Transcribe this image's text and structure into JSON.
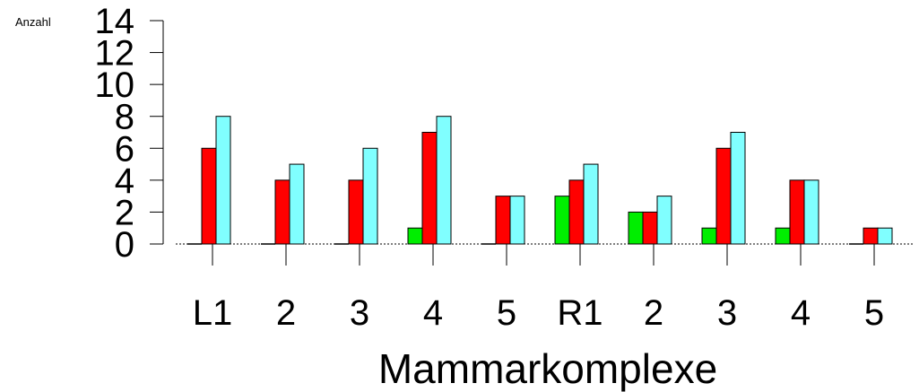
{
  "chart_data": {
    "type": "bar",
    "ylabel": "Anzahl",
    "xlabel": "Mammarkomplexe",
    "categories": [
      "L1",
      "2",
      "3",
      "4",
      "5",
      "R1",
      "2",
      "3",
      "4",
      "5"
    ],
    "series": [
      {
        "values": [
          0,
          0,
          0,
          1,
          0,
          3,
          2,
          1,
          1,
          0
        ]
      },
      {
        "values": [
          6,
          4,
          4,
          7,
          3,
          4,
          2,
          6,
          4,
          1
        ]
      },
      {
        "values": [
          8,
          5,
          6,
          8,
          3,
          5,
          3,
          7,
          4,
          1
        ]
      }
    ],
    "ylim": [
      0,
      14
    ],
    "yticks": [
      "0",
      "2",
      "4",
      "6",
      "8",
      "10",
      "12",
      "14"
    ],
    "colors": [
      "#00ee00",
      "#ff0000",
      "#80ffff"
    ],
    "grid": false
  }
}
